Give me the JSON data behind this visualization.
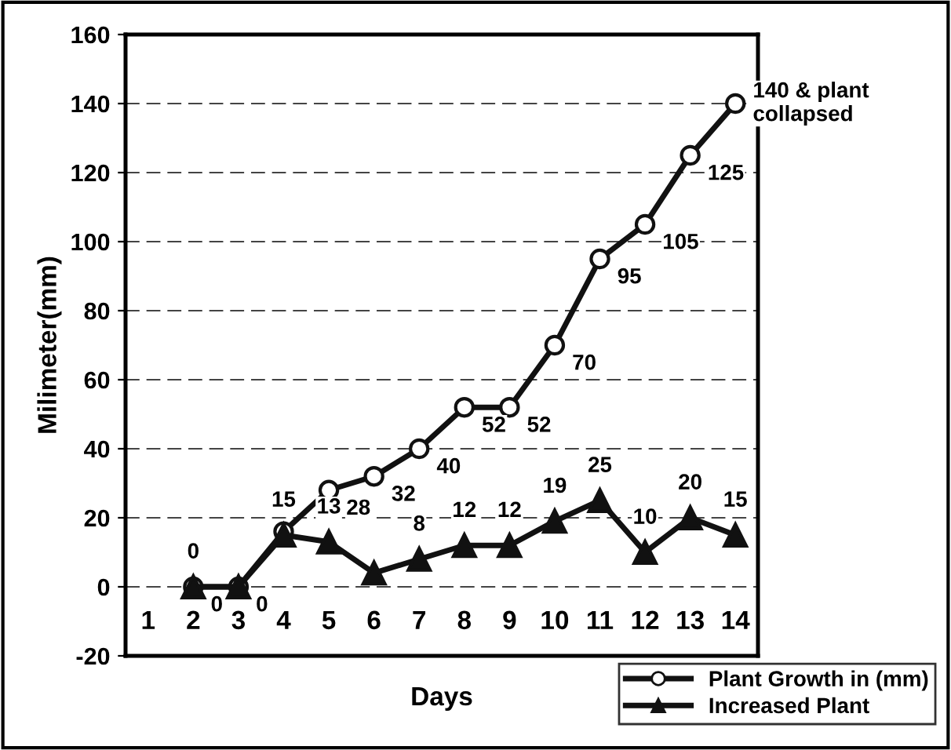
{
  "chart_data": {
    "type": "line",
    "xlabel": "Days",
    "ylabel": "Milimeter(mm)",
    "categories": [
      "1",
      "2",
      "3",
      "4",
      "5",
      "6",
      "7",
      "8",
      "9",
      "10",
      "11",
      "12",
      "13",
      "14"
    ],
    "series": [
      {
        "name": "Plant Growth in (mm)",
        "color": "#111111",
        "marker": "circle",
        "values": [
          null,
          0,
          0,
          16,
          28,
          32,
          40,
          52,
          52,
          70,
          95,
          105,
          125,
          140
        ],
        "value_labels": [
          null,
          "0",
          "0",
          null,
          "28",
          "32",
          "40",
          "52",
          "52",
          "70",
          "95",
          "105",
          "125",
          "140 & plant\ncollapsed"
        ]
      },
      {
        "name": "Increased Plant",
        "color": "#111111",
        "marker": "triangle",
        "values": [
          null,
          0,
          0,
          15,
          13,
          4,
          8,
          12,
          12,
          19,
          25,
          10,
          20,
          15
        ],
        "value_labels": [
          null,
          "0",
          null,
          "15",
          "13",
          null,
          "8",
          "12",
          "12",
          "19",
          "25",
          "10",
          "20",
          "15"
        ]
      }
    ],
    "ylim": [
      -20,
      160
    ],
    "yticks": [
      -20,
      0,
      20,
      40,
      60,
      80,
      100,
      120,
      140,
      160
    ],
    "grid": "y",
    "legend": "bottom right",
    "line_style": "solid"
  }
}
